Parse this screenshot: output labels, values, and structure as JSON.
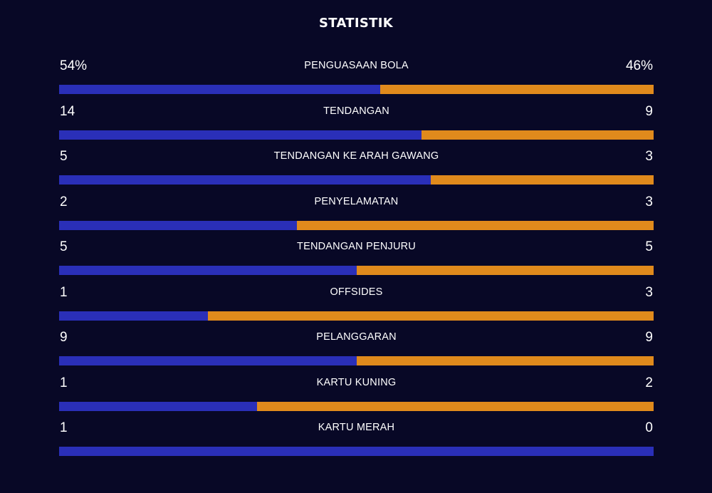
{
  "title": "STATISTIK",
  "colors": {
    "background": "#080826",
    "home": "#2a2fb8",
    "away": "#e08a1c"
  },
  "stats": [
    {
      "label": "PENGUASAAN BOLA",
      "left": "54%",
      "right": "46%",
      "left_share": 0.54
    },
    {
      "label": "TENDANGAN",
      "left": "14",
      "right": "9",
      "left_share": 0.609
    },
    {
      "label": "TENDANGAN KE ARAH GAWANG",
      "left": "5",
      "right": "3",
      "left_share": 0.625
    },
    {
      "label": "PENYELAMATAN",
      "left": "2",
      "right": "3",
      "left_share": 0.4
    },
    {
      "label": "TENDANGAN PENJURU",
      "left": "5",
      "right": "5",
      "left_share": 0.5
    },
    {
      "label": "OFFSIDES",
      "left": "1",
      "right": "3",
      "left_share": 0.25
    },
    {
      "label": "PELANGGARAN",
      "left": "9",
      "right": "9",
      "left_share": 0.5
    },
    {
      "label": "KARTU KUNING",
      "left": "1",
      "right": "2",
      "left_share": 0.333
    },
    {
      "label": "KARTU MERAH",
      "left": "1",
      "right": "0",
      "left_share": 1.0
    }
  ]
}
